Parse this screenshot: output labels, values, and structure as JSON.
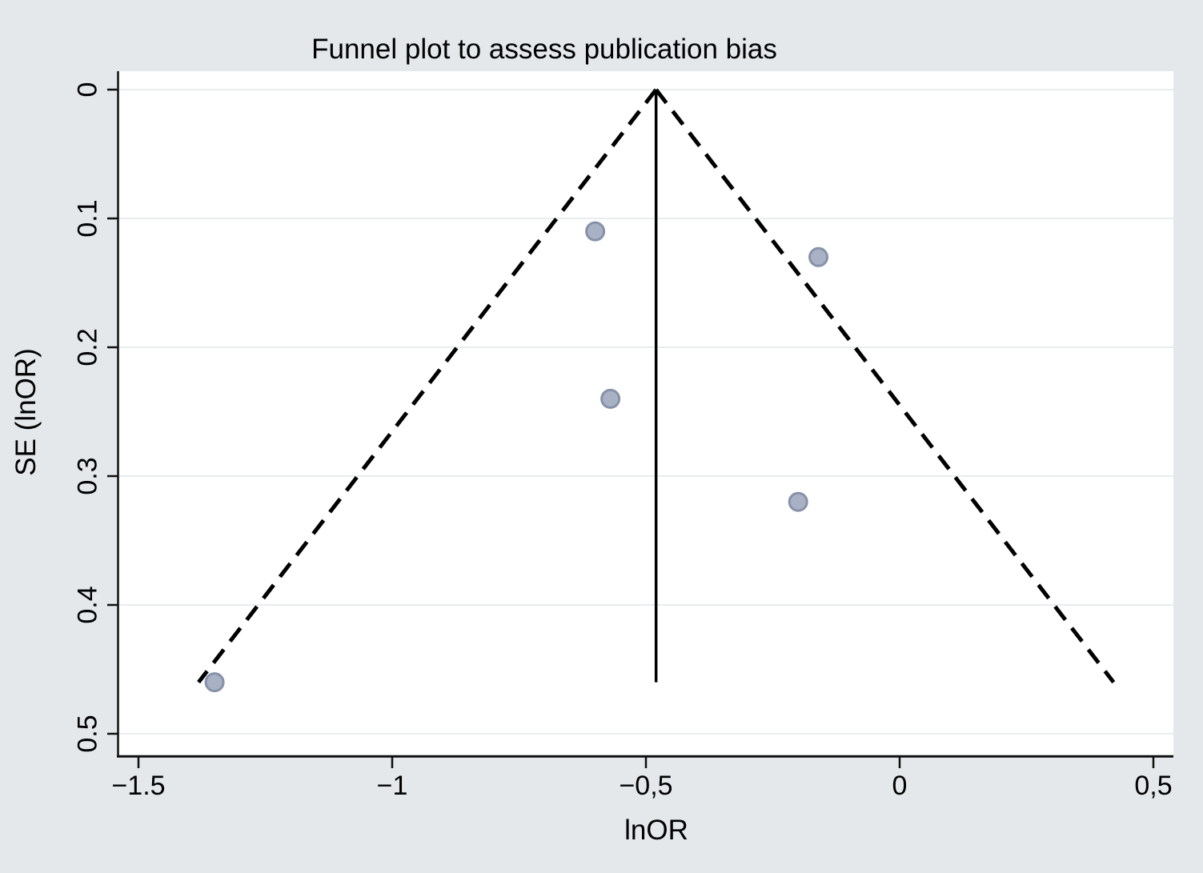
{
  "title": "Funnel plot to assess publication bias",
  "chart_data": {
    "type": "scatter",
    "title": "Funnel plot to assess publication bias",
    "xlabel": "lnOR",
    "ylabel": "SE (lnOR)",
    "x_ticks": [
      {
        "v": -1.5,
        "label": "−1.5"
      },
      {
        "v": -1.0,
        "label": "−1"
      },
      {
        "v": -0.5,
        "label": "−0,5"
      },
      {
        "v": 0.0,
        "label": "0"
      },
      {
        "v": 0.5,
        "label": "0,5"
      }
    ],
    "y_ticks": [
      {
        "v": 0.0,
        "label": "0"
      },
      {
        "v": 0.1,
        "label": "0.1"
      },
      {
        "v": 0.2,
        "label": "0.2"
      },
      {
        "v": 0.3,
        "label": "0.3"
      },
      {
        "v": 0.4,
        "label": "0.4"
      },
      {
        "v": 0.5,
        "label": "0.5"
      }
    ],
    "xlim": [
      -1.54,
      0.54
    ],
    "ylim_SE": [
      -0.014,
      0.52
    ],
    "y_axis_inverted": true,
    "grid": "horizontal",
    "legend": "none",
    "points": [
      {
        "lnOR": -0.6,
        "SE": 0.11
      },
      {
        "lnOR": -0.16,
        "SE": 0.13
      },
      {
        "lnOR": -0.57,
        "SE": 0.24
      },
      {
        "lnOR": -0.2,
        "SE": 0.32
      },
      {
        "lnOR": -1.35,
        "SE": 0.46
      }
    ],
    "pooled_line": {
      "lnOR": -0.48,
      "SE_from": 0,
      "SE_to": 0.46,
      "style": "solid"
    },
    "pseudo_ci": {
      "apex_lnOR": -0.48,
      "apex_SE": 0,
      "max_SE": 0.46,
      "multiplier": 1.96,
      "style": "dashed"
    }
  },
  "colors": {
    "background": "#e4e8eb",
    "plot_background": "#ffffff",
    "gridline": "#e9edee",
    "axis": "#0f0f0f",
    "text": "#000000",
    "marker_fill": "#a9b1c4",
    "marker_stroke": "#8792aa",
    "funnel_line": "#000000"
  }
}
